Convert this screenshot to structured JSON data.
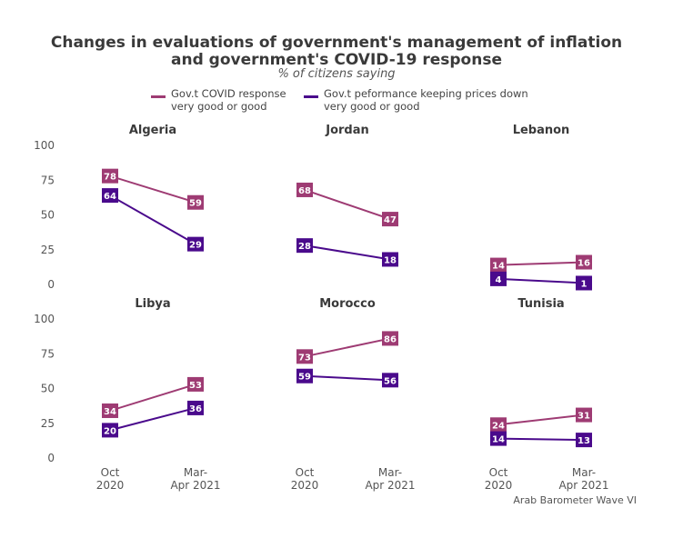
{
  "title_line1": "Changes in evaluations of government's management of inflation",
  "title_line2": "and government's COVID-19 response",
  "subtitle": "% of citizens saying",
  "legend": [
    {
      "line1": "Gov.t COVID response",
      "line2": "very good or good",
      "color": "#9e3b73"
    },
    {
      "line1": "Gov.t peformance keeping prices down",
      "line2": "very good or good",
      "color": "#4a0a8c"
    }
  ],
  "caption": "Arab Barometer Wave VI",
  "chart_data": {
    "type": "line",
    "categories": [
      "Oct\n2020",
      "Mar-\nApr 2021"
    ],
    "ylim": [
      0,
      100
    ],
    "yticks": [
      0,
      25,
      50,
      75,
      100
    ],
    "series_names": [
      "Gov.t COVID response very good or good",
      "Gov.t peformance keeping prices down very good or good"
    ],
    "series_colors": [
      "#9e3b73",
      "#4a0a8c"
    ],
    "panels": [
      {
        "title": "Algeria",
        "covid": [
          78,
          59
        ],
        "prices": [
          64,
          29
        ]
      },
      {
        "title": "Jordan",
        "covid": [
          68,
          47
        ],
        "prices": [
          28,
          18
        ]
      },
      {
        "title": "Lebanon",
        "covid": [
          14,
          16
        ],
        "prices": [
          4,
          1
        ]
      },
      {
        "title": "Libya",
        "covid": [
          34,
          53
        ],
        "prices": [
          20,
          36
        ]
      },
      {
        "title": "Morocco",
        "covid": [
          73,
          86
        ],
        "prices": [
          59,
          56
        ]
      },
      {
        "title": "Tunisia",
        "covid": [
          24,
          31
        ],
        "prices": [
          14,
          13
        ]
      }
    ]
  }
}
